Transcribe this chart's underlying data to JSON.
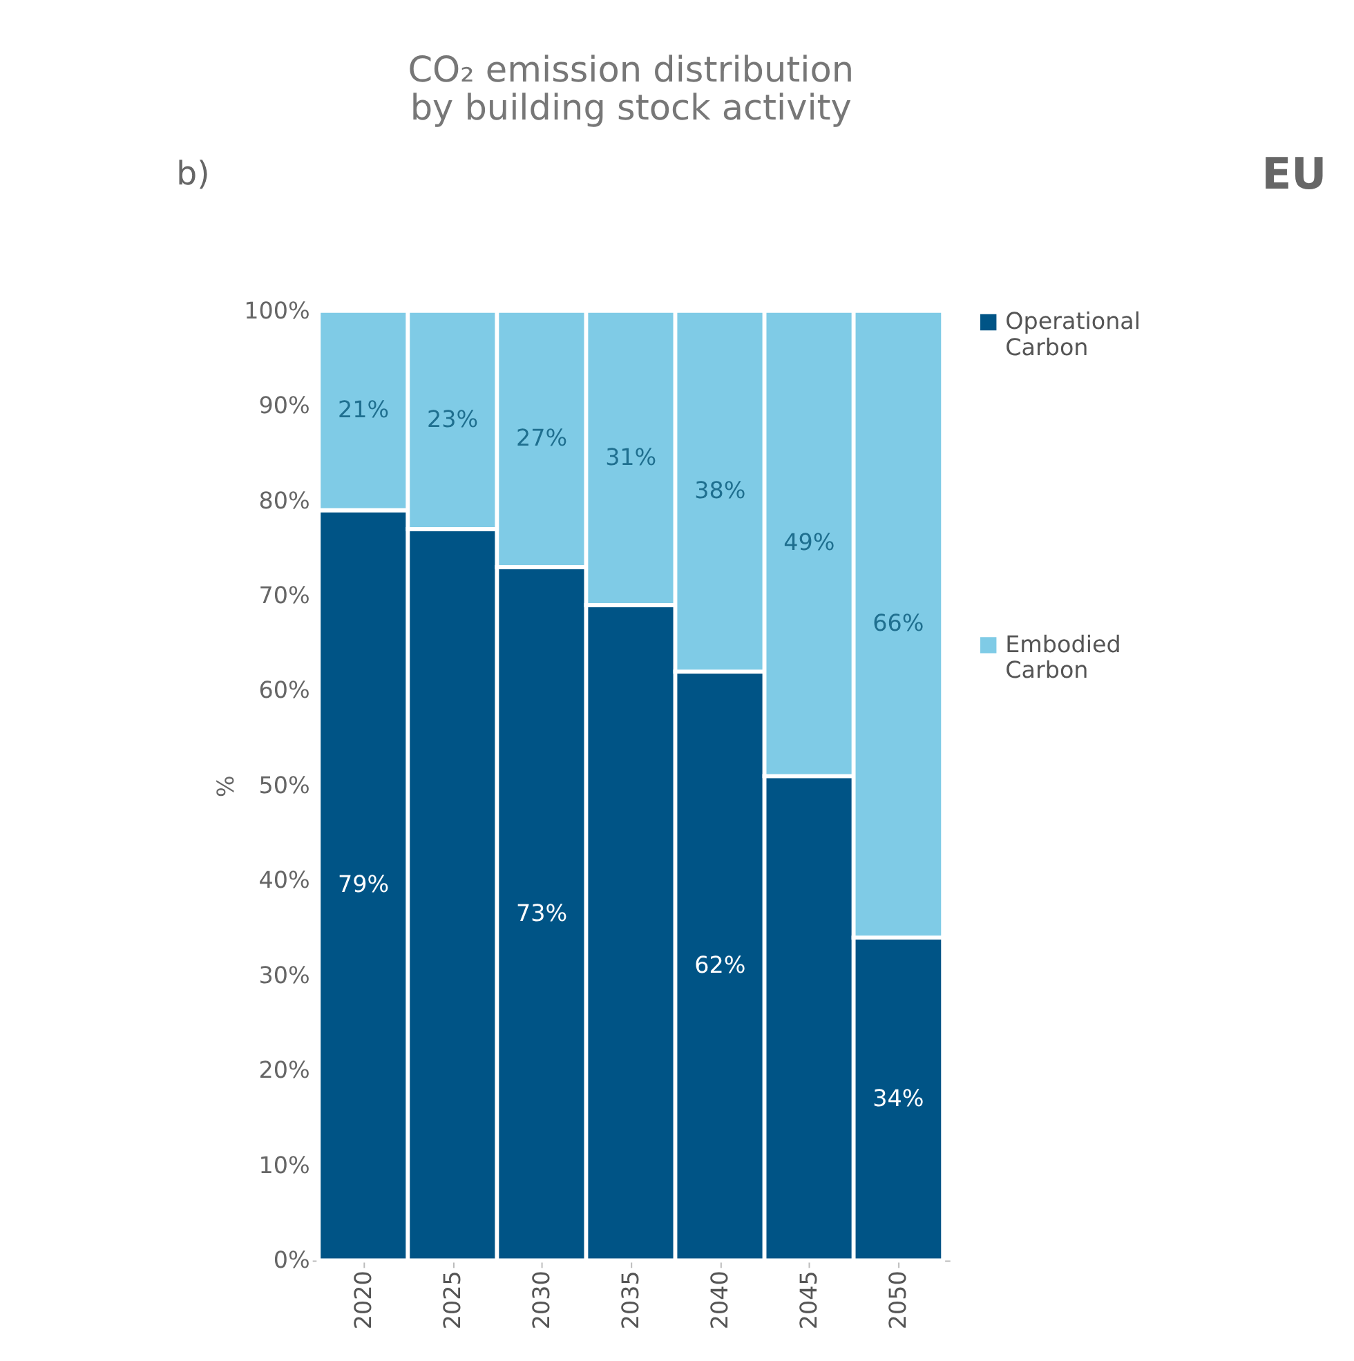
{
  "chart_data": {
    "type": "bar",
    "stacked": true,
    "title": "CO₂ emission distribution\nby building stock activity",
    "ylabel": "%",
    "categories": [
      "2020",
      "2025",
      "2030",
      "2035",
      "2040",
      "2045",
      "2050"
    ],
    "series": [
      {
        "name": "Operational Carbon",
        "color": "#005486",
        "values": [
          79,
          77,
          73,
          69,
          62,
          51,
          34
        ],
        "value_labels": [
          "79%",
          null,
          "73%",
          null,
          "62%",
          null,
          "34%"
        ]
      },
      {
        "name": "Embodied Carbon",
        "color": "#7fcbe6",
        "values": [
          21,
          23,
          27,
          31,
          38,
          49,
          66
        ],
        "value_labels": [
          "21%",
          "23%",
          "27%",
          "31%",
          "38%",
          "49%",
          "66%"
        ]
      }
    ],
    "ylim": [
      0,
      100
    ],
    "yticks": [
      {
        "value": 0,
        "label": "0%"
      },
      {
        "value": 10,
        "label": "10%"
      },
      {
        "value": 20,
        "label": "20%"
      },
      {
        "value": 30,
        "label": "30%"
      },
      {
        "value": 40,
        "label": "40%"
      },
      {
        "value": 50,
        "label": "50%"
      },
      {
        "value": 60,
        "label": "60%"
      },
      {
        "value": 70,
        "label": "70%"
      },
      {
        "value": 80,
        "label": "80%"
      },
      {
        "value": 90,
        "label": "90%"
      },
      {
        "value": 100,
        "label": "100%"
      }
    ],
    "grid": false,
    "legend": "right",
    "annotations": [
      "b)",
      "EU"
    ]
  }
}
